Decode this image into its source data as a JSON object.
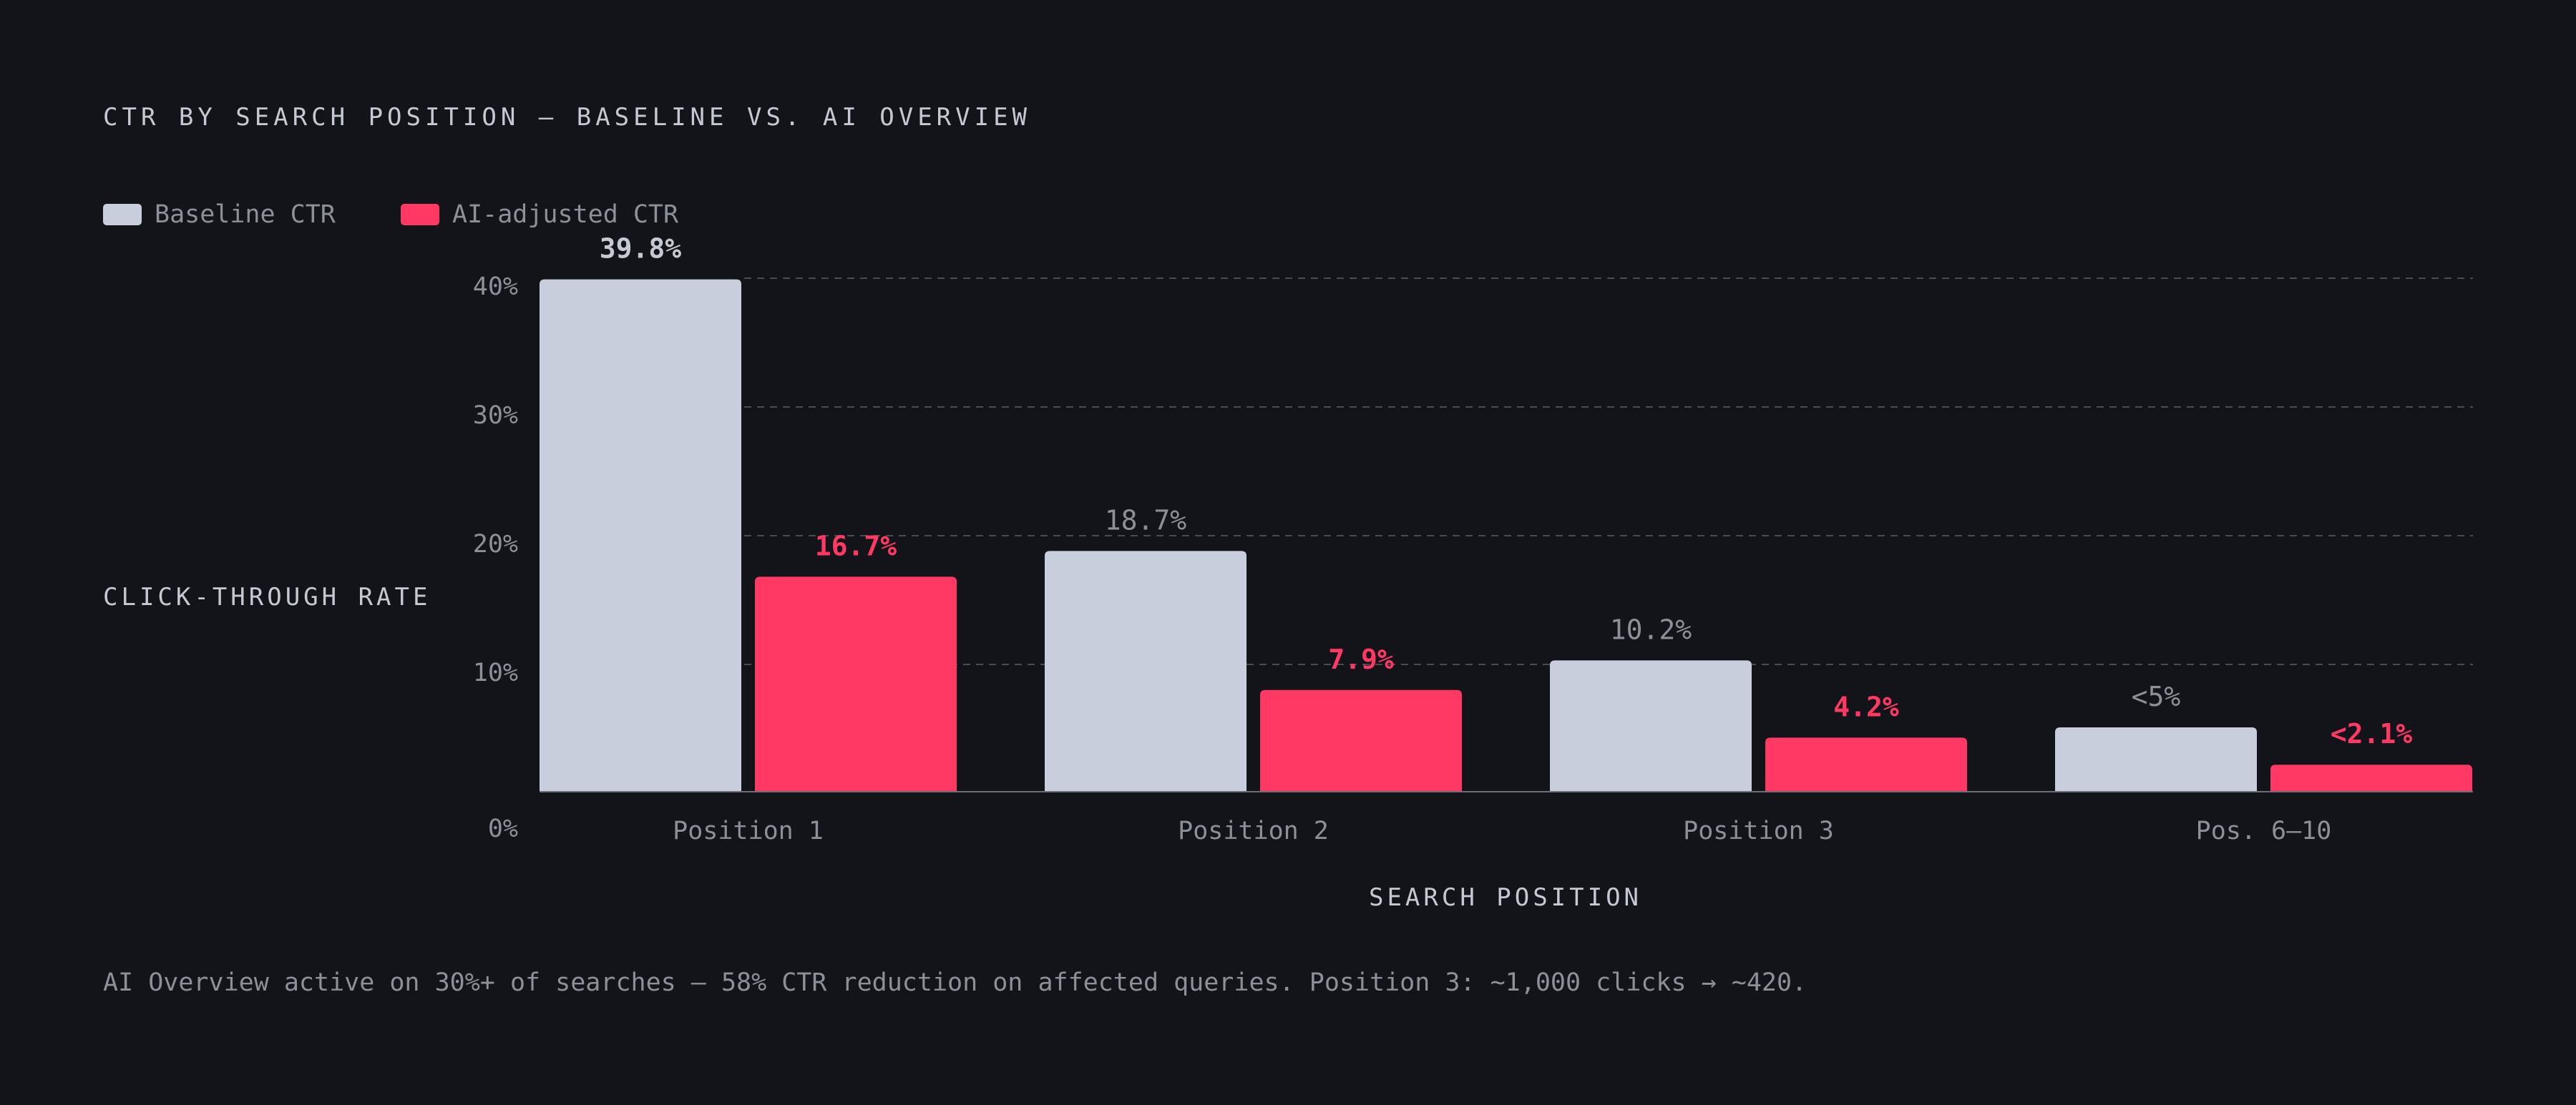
{
  "colors": {
    "background": "#131419",
    "baseline": "#c9cedd",
    "ai": "#ff3864",
    "text_muted": "#8d8f99",
    "text_light": "#c6c9d4",
    "grid": "#4a4c54",
    "axis": "#6e7078"
  },
  "chart_data": {
    "type": "bar",
    "title": "CTR BY SEARCH POSITION — BASELINE VS. AI OVERVIEW",
    "xlabel": "SEARCH POSITION",
    "ylabel": "CLICK-THROUGH RATE",
    "ylim": [
      0,
      40
    ],
    "yticks": [
      0,
      10,
      20,
      30,
      40
    ],
    "ytick_labels": [
      "0%",
      "10%",
      "20%",
      "30%",
      "40%"
    ],
    "grid": "horizontal dashed",
    "legend_position": "top-left",
    "categories": [
      "Position 1",
      "Position 2",
      "Position 3",
      "Pos. 6–10"
    ],
    "series": [
      {
        "name": "Baseline CTR",
        "color": "#c9cedd",
        "values": [
          39.8,
          18.7,
          10.2,
          5.0
        ],
        "value_labels": [
          "39.8%",
          "18.7%",
          "10.2%",
          "<5%"
        ]
      },
      {
        "name": "AI-adjusted CTR",
        "color": "#ff3864",
        "values": [
          16.7,
          7.9,
          4.2,
          2.1
        ],
        "value_labels": [
          "16.7%",
          "7.9%",
          "4.2%",
          "<2.1%"
        ]
      }
    ],
    "annotation": "AI Overview active on 30%+ of searches — 58% CTR reduction on affected queries. Position 3: ~1,000 clicks → ~420."
  }
}
